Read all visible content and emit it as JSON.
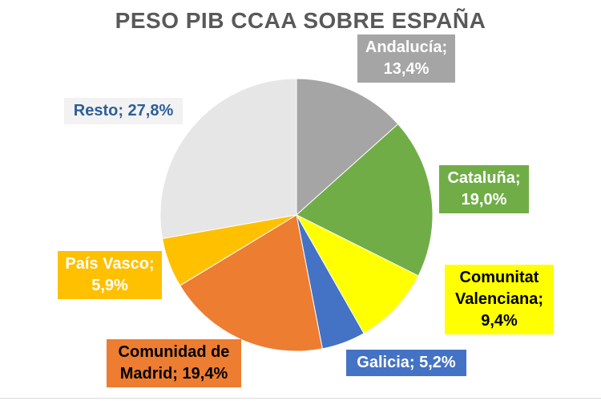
{
  "chart_data": {
    "type": "pie",
    "title": "PESO PIB CCAA SOBRE ESPAÑA",
    "slices": [
      {
        "name": "Andalucía",
        "value": 13.4,
        "label_lines": [
          "Andalucía;",
          "13,4%"
        ],
        "color": "#a5a5a5",
        "label_bg": "#a5a5a5",
        "label_color": "#ffffff"
      },
      {
        "name": "Cataluña",
        "value": 19.0,
        "label_lines": [
          "Cataluña;",
          "19,0%"
        ],
        "color": "#70ad47",
        "label_bg": "#70ad47",
        "label_color": "#ffffff"
      },
      {
        "name": "Comunitat Valenciana",
        "value": 9.4,
        "label_lines": [
          "Comunitat",
          "Valenciana;",
          "9,4%"
        ],
        "color": "#ffff00",
        "label_bg": "#ffff00",
        "label_color": "#000000"
      },
      {
        "name": "Galicia",
        "value": 5.2,
        "label_lines": [
          "Galicia; 5,2%"
        ],
        "color": "#4472c4",
        "label_bg": "#4472c4",
        "label_color": "#ffffff"
      },
      {
        "name": "Comunidad de Madrid",
        "value": 19.4,
        "label_lines": [
          "Comunidad de",
          "Madrid; 19,4%"
        ],
        "color": "#ed7d31",
        "label_bg": "#ed7d31",
        "label_color": "#000000"
      },
      {
        "name": "País Vasco",
        "value": 5.9,
        "label_lines": [
          "País Vasco;",
          "5,9%"
        ],
        "color": "#ffc000",
        "label_bg": "#ffc000",
        "label_color": "#ffffff"
      },
      {
        "name": "Resto",
        "value": 27.8,
        "label_lines": [
          "Resto; 27,8%"
        ],
        "color": "#e7e6e6",
        "label_bg": "#f2f2f2",
        "label_color": "#2e5e99"
      }
    ],
    "start": "12 o'clock",
    "direction": "clockwise",
    "legend": "none",
    "data_labels": "category; value"
  }
}
